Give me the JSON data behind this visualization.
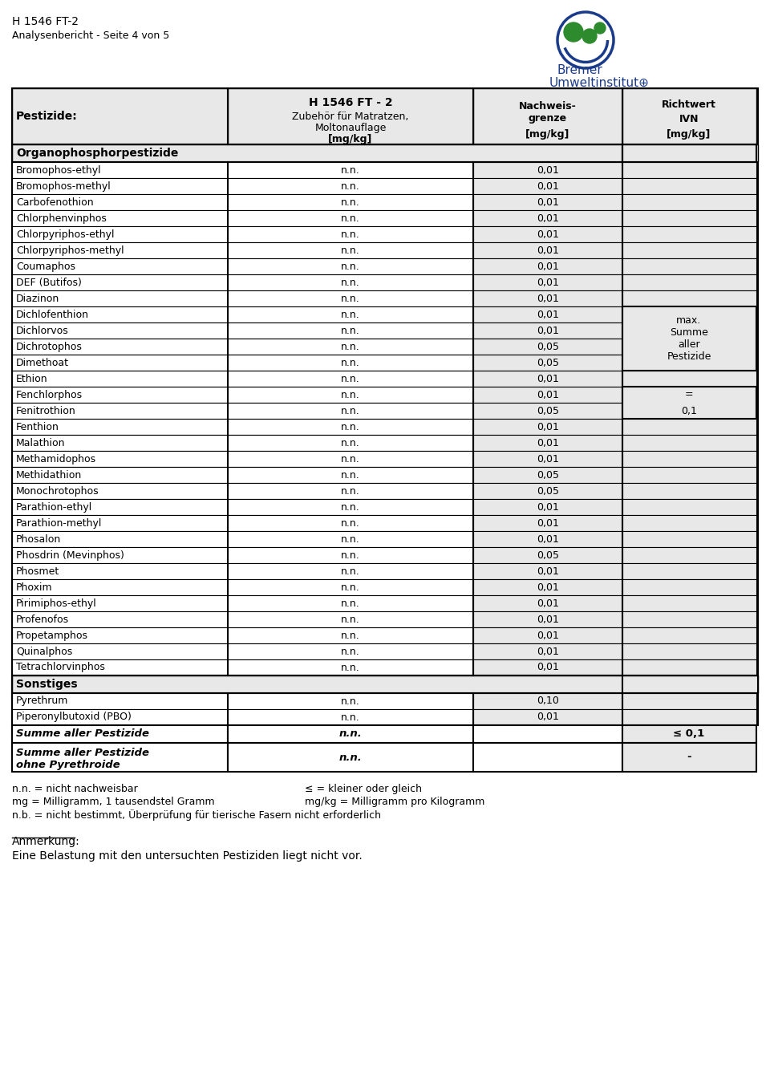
{
  "header_line1": "H 1546 FT-2",
  "header_line2": "Analysenbericht - Seite 4 von 5",
  "col_headers": [
    "Pestizide:",
    "H 1546 FT - 2\nZubehör für Matratzen,\nMoltonauflage\n[mg/kg]",
    "Nachweis-\ngrenze\n[mg/kg]",
    "Richtwert\nIVN\n[mg/kg]"
  ],
  "section1_header": "Organophosphorpestizide",
  "rows": [
    [
      "Bromophos-ethyl",
      "n.n.",
      "0,01",
      ""
    ],
    [
      "Bromophos-methyl",
      "n.n.",
      "0,01",
      ""
    ],
    [
      "Carbofenothion",
      "n.n.",
      "0,01",
      ""
    ],
    [
      "Chlorphenvinphos",
      "n.n.",
      "0,01",
      ""
    ],
    [
      "Chlorpyriphos-ethyl",
      "n.n.",
      "0,01",
      ""
    ],
    [
      "Chlorpyriphos-methyl",
      "n.n.",
      "0,01",
      ""
    ],
    [
      "Coumaphos",
      "n.n.",
      "0,01",
      ""
    ],
    [
      "DEF (Butifos)",
      "n.n.",
      "0,01",
      ""
    ],
    [
      "Diazinon",
      "n.n.",
      "0,01",
      ""
    ],
    [
      "Dichlofenthion",
      "n.n.",
      "0,01",
      "max.\nSumme\naller\nPestizide"
    ],
    [
      "Dichlorvos",
      "n.n.",
      "0,01",
      ""
    ],
    [
      "Dichrotophos",
      "n.n.",
      "0,05",
      ""
    ],
    [
      "Dimethoat",
      "n.n.",
      "0,05",
      ""
    ],
    [
      "Ethion",
      "n.n.",
      "0,01",
      ""
    ],
    [
      "Fenchlorphos",
      "n.n.",
      "0,01",
      "="
    ],
    [
      "Fenitrothion",
      "n.n.",
      "0,05",
      "0,1"
    ],
    [
      "Fenthion",
      "n.n.",
      "0,01",
      ""
    ],
    [
      "Malathion",
      "n.n.",
      "0,01",
      ""
    ],
    [
      "Methamidophos",
      "n.n.",
      "0,01",
      ""
    ],
    [
      "Methidathion",
      "n.n.",
      "0,05",
      ""
    ],
    [
      "Monochrotophos",
      "n.n.",
      "0,05",
      ""
    ],
    [
      "Parathion-ethyl",
      "n.n.",
      "0,01",
      ""
    ],
    [
      "Parathion-methyl",
      "n.n.",
      "0,01",
      ""
    ],
    [
      "Phosalon",
      "n.n.",
      "0,01",
      ""
    ],
    [
      "Phosdrin (Mevinphos)",
      "n.n.",
      "0,05",
      ""
    ],
    [
      "Phosmet",
      "n.n.",
      "0,01",
      ""
    ],
    [
      "Phoxim",
      "n.n.",
      "0,01",
      ""
    ],
    [
      "Pirimiphos-ethyl",
      "n.n.",
      "0,01",
      ""
    ],
    [
      "Profenofos",
      "n.n.",
      "0,01",
      ""
    ],
    [
      "Propetamphos",
      "n.n.",
      "0,01",
      ""
    ],
    [
      "Quinalphos",
      "n.n.",
      "0,01",
      ""
    ],
    [
      "Tetrachlorvinphos",
      "n.n.",
      "0,01",
      ""
    ]
  ],
  "section2_header": "Sonstiges",
  "rows2": [
    [
      "Pyrethrum",
      "n.n.",
      "0,10",
      ""
    ],
    [
      "Piperonylbutoxid (PBO)",
      "n.n.",
      "0,01",
      ""
    ]
  ],
  "summary_rows": [
    [
      "Summe aller Pestizide",
      "n.n.",
      "",
      "≤ 0,1"
    ],
    [
      "Summe aller Pestizide\nohne Pyrethroide",
      "n.n.",
      "",
      "-"
    ]
  ],
  "footnotes_left": [
    "n.n. = nicht nachweisbar",
    "mg = Milligramm, 1 tausendstel Gramm",
    "n.b. = nicht bestimmt, Überprüfung für tierische Fasern nicht erforderlich"
  ],
  "footnotes_right": [
    "≤ = kleiner oder gleich",
    "mg/kg = Milligramm pro Kilogramm"
  ],
  "anmerkung_title": "Anmerkung:",
  "anmerkung_text": "Eine Belastung mit den untersuchten Pestiziden liegt nicht vor.",
  "bg_light": "#e8e8e8",
  "bg_white": "#ffffff",
  "border_color": "#000000",
  "header_bg": "#d0d0d0",
  "section_bg": "#e0e0e0"
}
